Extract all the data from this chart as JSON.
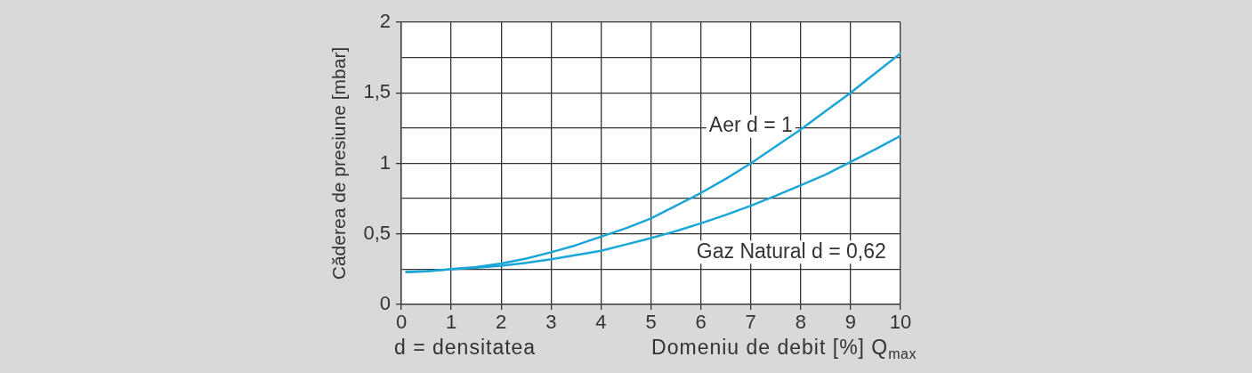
{
  "chart_data": {
    "type": "line",
    "xlabel": "Domeniu de debit [%] Q$_{max}$",
    "ylabel": "Căderea de presiune [mbar]",
    "annotations": [
      "d = densitatea"
    ],
    "x": [
      0.1,
      0.5,
      1,
      1.5,
      2,
      2.5,
      3,
      3.5,
      4,
      4.5,
      5,
      5.5,
      6,
      6.5,
      7,
      7.5,
      8,
      8.5,
      9,
      9.5,
      10
    ],
    "series": [
      {
        "name": "Aer d = 1",
        "color": "#1aa6d6",
        "values": [
          0.23,
          0.235,
          0.25,
          0.265,
          0.29,
          0.325,
          0.37,
          0.42,
          0.48,
          0.54,
          0.61,
          0.7,
          0.79,
          0.89,
          1.0,
          1.12,
          1.24,
          1.37,
          1.5,
          1.64,
          1.78
        ]
      },
      {
        "name": "Gaz Natural d = 0,62",
        "color": "#1aa6d6",
        "values": [
          0.23,
          0.235,
          0.25,
          0.26,
          0.275,
          0.295,
          0.32,
          0.35,
          0.38,
          0.425,
          0.47,
          0.52,
          0.575,
          0.635,
          0.7,
          0.77,
          0.845,
          0.92,
          1.01,
          1.1,
          1.195
        ]
      }
    ],
    "xlim": [
      0,
      10
    ],
    "xticks": [
      0,
      1,
      2,
      3,
      4,
      5,
      6,
      7,
      8,
      9,
      10
    ],
    "ylim": [
      0,
      2
    ],
    "yticks": [
      0,
      {
        "value": 0.25,
        "label": null
      },
      {
        "value": 0.5,
        "label": "0,5"
      },
      {
        "value": 0.75,
        "label": null
      },
      1,
      {
        "value": 1.25,
        "label": null
      },
      {
        "value": 1.5,
        "label": "1,5"
      },
      {
        "value": 1.75,
        "label": null
      },
      2
    ],
    "grid": true,
    "legend": false,
    "marker": "none",
    "line_style": "solid"
  }
}
